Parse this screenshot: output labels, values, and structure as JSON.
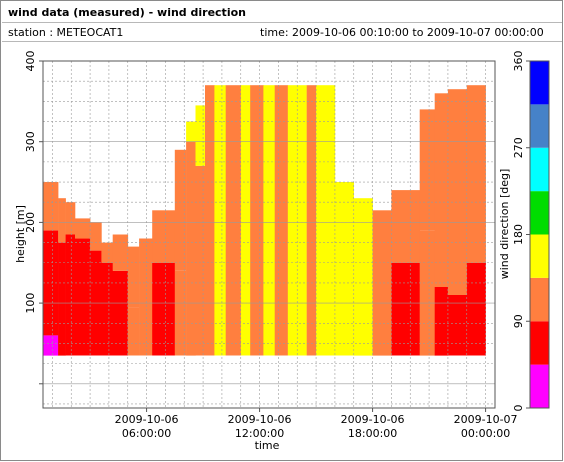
{
  "header": {
    "title": "wind data (measured) - wind direction",
    "station": "station : METEOCAT1",
    "time_range": "time: 2009-10-06 00:10:00 to 2009-10-07 00:00:00"
  },
  "chart_data": {
    "type": "heatmap",
    "title": "wind data (measured) - wind direction",
    "xlabel": "time",
    "ylabel": "height [m]",
    "colorbar_label": "wind direction [deg]",
    "x_range_hours": [
      0,
      24
    ],
    "ylim": [
      0,
      400
    ],
    "y_ticks": [
      100,
      200,
      300,
      400
    ],
    "x_ticks": [
      {
        "hour": 6,
        "line1": "2009-10-06",
        "line2": "06:00:00"
      },
      {
        "hour": 12,
        "line1": "2009-10-06",
        "line2": "12:00:00"
      },
      {
        "hour": 18,
        "line1": "2009-10-06",
        "line2": "18:00:00"
      },
      {
        "hour": 24,
        "line1": "2009-10-07",
        "line2": "00:00:00"
      }
    ],
    "colorbar": {
      "range": [
        0,
        360
      ],
      "ticks": [
        0,
        90,
        180,
        270,
        360
      ],
      "bins": [
        {
          "from": 0,
          "to": 45,
          "color": "#ff00ff"
        },
        {
          "from": 45,
          "to": 90,
          "color": "#ff0000"
        },
        {
          "from": 90,
          "to": 135,
          "color": "#ff7f3f"
        },
        {
          "from": 135,
          "to": 180,
          "color": "#ffff00"
        },
        {
          "from": 180,
          "to": 225,
          "color": "#00dd00"
        },
        {
          "from": 225,
          "to": 270,
          "color": "#00ffff"
        },
        {
          "from": 270,
          "to": 315,
          "color": "#4682c8"
        },
        {
          "from": 315,
          "to": 360,
          "color": "#0000ff"
        }
      ]
    },
    "grid": true,
    "data_y_range": [
      35,
      370
    ],
    "columns": [
      {
        "start": 0.0,
        "end": 0.5,
        "top": 240,
        "dir": [
          [
            35,
            160,
            67
          ],
          [
            160,
            240,
            112
          ]
        ]
      },
      {
        "start": 0.5,
        "end": 1.3,
        "top": 250,
        "dir": [
          [
            35,
            60,
            22
          ],
          [
            60,
            190,
            67
          ],
          [
            190,
            250,
            112
          ]
        ]
      },
      {
        "start": 1.3,
        "end": 1.7,
        "top": 230,
        "dir": [
          [
            35,
            175,
            67
          ],
          [
            175,
            230,
            112
          ]
        ]
      },
      {
        "start": 1.7,
        "end": 2.2,
        "top": 225,
        "dir": [
          [
            35,
            185,
            67
          ],
          [
            185,
            225,
            112
          ]
        ]
      },
      {
        "start": 2.2,
        "end": 3.0,
        "top": 205,
        "dir": [
          [
            35,
            180,
            67
          ],
          [
            180,
            205,
            112
          ]
        ]
      },
      {
        "start": 3.0,
        "end": 3.6,
        "top": 200,
        "dir": [
          [
            35,
            165,
            67
          ],
          [
            165,
            200,
            112
          ]
        ]
      },
      {
        "start": 3.6,
        "end": 4.2,
        "top": 175,
        "dir": [
          [
            35,
            150,
            67
          ],
          [
            150,
            175,
            112
          ]
        ]
      },
      {
        "start": 4.2,
        "end": 5.0,
        "top": 185,
        "dir": [
          [
            35,
            140,
            67
          ],
          [
            140,
            185,
            112
          ]
        ]
      },
      {
        "start": 5.0,
        "end": 5.6,
        "top": 170,
        "dir": [
          [
            35,
            95,
            112
          ],
          [
            95,
            170,
            112
          ]
        ]
      },
      {
        "start": 5.6,
        "end": 6.3,
        "top": 180,
        "dir": [
          [
            35,
            110,
            112
          ],
          [
            110,
            180,
            112
          ]
        ]
      },
      {
        "start": 6.3,
        "end": 7.5,
        "top": 215,
        "dir": [
          [
            35,
            150,
            67
          ],
          [
            150,
            215,
            112
          ]
        ]
      },
      {
        "start": 7.5,
        "end": 8.1,
        "top": 290,
        "dir": [
          [
            35,
            140,
            112
          ],
          [
            140,
            290,
            112
          ]
        ]
      },
      {
        "start": 8.1,
        "end": 8.6,
        "top": 325,
        "dir": [
          [
            35,
            200,
            112
          ],
          [
            200,
            300,
            112
          ],
          [
            300,
            325,
            157
          ]
        ]
      },
      {
        "start": 8.6,
        "end": 9.1,
        "top": 345,
        "dir": [
          [
            35,
            270,
            112
          ],
          [
            270,
            345,
            157
          ]
        ]
      },
      {
        "start": 9.1,
        "end": 9.6,
        "top": 370,
        "dir": [
          [
            35,
            370,
            112
          ]
        ]
      },
      {
        "start": 9.6,
        "end": 10.2,
        "top": 370,
        "dir": [
          [
            35,
            370,
            157
          ]
        ]
      },
      {
        "start": 10.2,
        "end": 11.0,
        "top": 370,
        "dir": [
          [
            35,
            370,
            112
          ]
        ]
      },
      {
        "start": 11.0,
        "end": 11.5,
        "top": 370,
        "dir": [
          [
            35,
            370,
            157
          ]
        ]
      },
      {
        "start": 11.5,
        "end": 12.2,
        "top": 370,
        "dir": [
          [
            35,
            370,
            112
          ]
        ]
      },
      {
        "start": 12.2,
        "end": 12.8,
        "top": 370,
        "dir": [
          [
            35,
            370,
            157
          ]
        ]
      },
      {
        "start": 12.8,
        "end": 13.5,
        "top": 370,
        "dir": [
          [
            35,
            370,
            112
          ]
        ]
      },
      {
        "start": 13.5,
        "end": 14.5,
        "top": 370,
        "dir": [
          [
            35,
            370,
            157
          ]
        ]
      },
      {
        "start": 14.5,
        "end": 15.0,
        "top": 370,
        "dir": [
          [
            35,
            370,
            112
          ]
        ]
      },
      {
        "start": 15.0,
        "end": 16.0,
        "top": 370,
        "dir": [
          [
            35,
            370,
            157
          ]
        ]
      },
      {
        "start": 16.0,
        "end": 17.0,
        "top": 250,
        "dir": [
          [
            35,
            250,
            157
          ]
        ]
      },
      {
        "start": 17.0,
        "end": 18.0,
        "top": 230,
        "dir": [
          [
            35,
            230,
            157
          ]
        ]
      },
      {
        "start": 18.0,
        "end": 19.0,
        "top": 215,
        "dir": [
          [
            35,
            215,
            112
          ]
        ]
      },
      {
        "start": 19.0,
        "end": 20.5,
        "top": 240,
        "dir": [
          [
            35,
            150,
            67
          ],
          [
            150,
            240,
            112
          ]
        ]
      },
      {
        "start": 20.5,
        "end": 21.3,
        "top": 340,
        "dir": [
          [
            35,
            190,
            112
          ],
          [
            190,
            340,
            112
          ]
        ]
      },
      {
        "start": 21.3,
        "end": 22.0,
        "top": 360,
        "dir": [
          [
            35,
            120,
            67
          ],
          [
            120,
            360,
            112
          ]
        ]
      },
      {
        "start": 22.0,
        "end": 23.0,
        "top": 365,
        "dir": [
          [
            35,
            110,
            67
          ],
          [
            110,
            365,
            112
          ]
        ]
      },
      {
        "start": 23.0,
        "end": 24.0,
        "top": 370,
        "dir": [
          [
            35,
            150,
            67
          ],
          [
            150,
            370,
            112
          ]
        ]
      }
    ]
  }
}
